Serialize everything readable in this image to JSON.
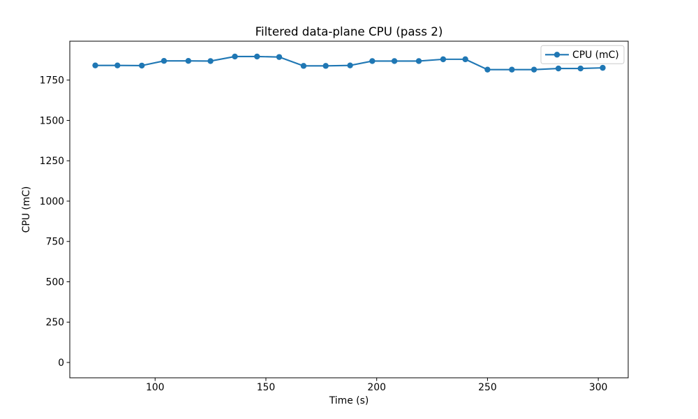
{
  "chart_data": {
    "type": "line",
    "title": "Filtered data-plane CPU (pass 2)",
    "xlabel": "Time (s)",
    "ylabel": "CPU (mC)",
    "xlim": [
      61.5,
      313.5
    ],
    "ylim": [
      -95,
      1991
    ],
    "xticks": [
      100,
      150,
      200,
      250,
      300
    ],
    "yticks": [
      0,
      250,
      500,
      750,
      1000,
      1250,
      1500,
      1750
    ],
    "grid": false,
    "legend": {
      "location": "upper right",
      "entries": [
        "CPU (mC)"
      ]
    },
    "colors": {
      "series": "#1f77b4",
      "spine": "#000000",
      "legend_border": "#cccccc",
      "background": "#ffffff"
    },
    "series": [
      {
        "name": "CPU (mC)",
        "color": "#1f77b4",
        "marker": "circle",
        "x": [
          73,
          83,
          94,
          104,
          115,
          125,
          136,
          146,
          156,
          167,
          177,
          188,
          198,
          208,
          219,
          230,
          240,
          250,
          261,
          271,
          282,
          292,
          302
        ],
        "y": [
          1841,
          1841,
          1840,
          1869,
          1869,
          1868,
          1896,
          1896,
          1893,
          1838,
          1838,
          1841,
          1868,
          1868,
          1868,
          1879,
          1879,
          1815,
          1815,
          1815,
          1822,
          1822,
          1826
        ]
      }
    ]
  }
}
